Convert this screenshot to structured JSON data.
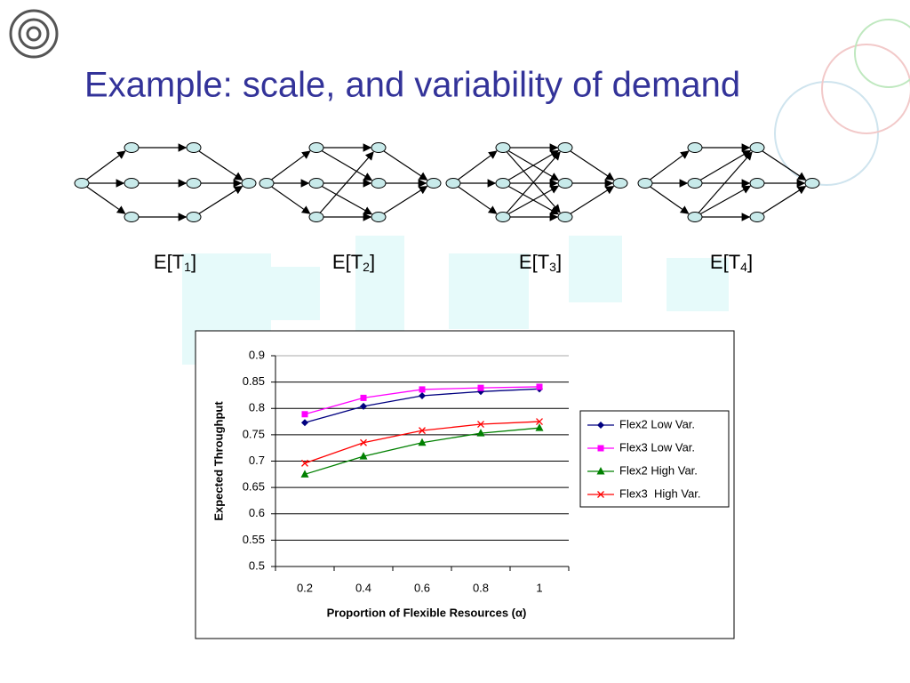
{
  "title": "Example: scale, and variability of demand",
  "diagrams": [
    {
      "prefix": "E[T",
      "sub": "1",
      "suffix": "]"
    },
    {
      "prefix": "E[T",
      "sub": "2",
      "suffix": "]"
    },
    {
      "prefix": "E[T",
      "sub": "3",
      "suffix": "]"
    },
    {
      "prefix": "E[T",
      "sub": "4",
      "suffix": "]"
    }
  ],
  "chart_data": {
    "type": "line",
    "x_label": "Proportion of Flexible Resources (α)",
    "y_label": "Expected Throughput",
    "categories": [
      "0.2",
      "0.4",
      "0.6",
      "0.8",
      "1"
    ],
    "ylim": [
      0.5,
      0.9
    ],
    "yticks": [
      0.5,
      0.55,
      0.6,
      0.65,
      0.7,
      0.75,
      0.8,
      0.85,
      0.9
    ],
    "grid": true,
    "legend": "right",
    "series": [
      {
        "name": "Flex2 Low Var.",
        "color": "#000080",
        "marker": "diamond",
        "values": [
          0.773,
          0.804,
          0.824,
          0.832,
          0.837
        ]
      },
      {
        "name": "Flex3 Low Var.",
        "color": "#ff00ff",
        "marker": "square",
        "values": [
          0.789,
          0.82,
          0.836,
          0.839,
          0.841
        ]
      },
      {
        "name": "Flex2 High Var.",
        "color": "#008000",
        "marker": "triangle",
        "values": [
          0.675,
          0.709,
          0.735,
          0.753,
          0.763
        ]
      },
      {
        "name": "Flex3  High Var.",
        "color": "#ff0000",
        "marker": "x",
        "values": [
          0.696,
          0.735,
          0.758,
          0.77,
          0.775
        ]
      }
    ]
  }
}
